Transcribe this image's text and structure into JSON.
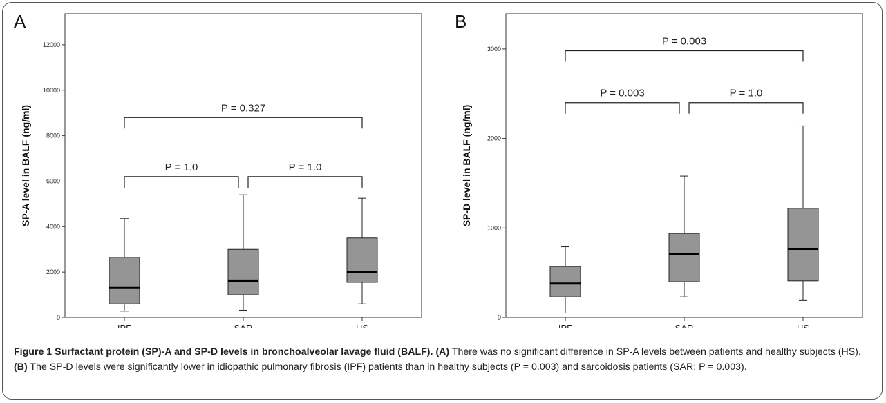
{
  "chart_data": [
    {
      "type": "box",
      "panel": "A",
      "ylabel": "SP-A level in BALF (ng/ml)",
      "xlabel": "",
      "ylim": [
        0,
        13000
      ],
      "yticks": [
        0,
        2000,
        4000,
        6000,
        8000,
        10000,
        12000
      ],
      "categories": [
        "IPF",
        "SAR",
        "HS"
      ],
      "boxes": [
        {
          "category": "IPF",
          "min": 280,
          "q1": 600,
          "median": 1300,
          "q3": 2650,
          "max": 4350
        },
        {
          "category": "SAR",
          "min": 320,
          "q1": 1000,
          "median": 1600,
          "q3": 3000,
          "max": 5400
        },
        {
          "category": "HS",
          "min": 600,
          "q1": 1550,
          "median": 2000,
          "q3": 3500,
          "max": 5250
        }
      ],
      "comparisons": [
        {
          "from": "IPF",
          "to": "SAR",
          "label": "P = 1.0",
          "y": 6200
        },
        {
          "from": "SAR",
          "to": "HS",
          "label": "P = 1.0",
          "y": 6200
        },
        {
          "from": "IPF",
          "to": "HS",
          "label": "P = 0.327",
          "y": 8800
        }
      ]
    },
    {
      "type": "box",
      "panel": "B",
      "ylabel": "SP-D level in BALF (ng/ml)",
      "xlabel": "",
      "ylim": [
        0,
        3300
      ],
      "yticks": [
        0,
        1000,
        2000,
        3000
      ],
      "categories": [
        "IPF",
        "SAR",
        "HS"
      ],
      "boxes": [
        {
          "category": "IPF",
          "min": 50,
          "q1": 230,
          "median": 380,
          "q3": 570,
          "max": 790
        },
        {
          "category": "SAR",
          "min": 230,
          "q1": 400,
          "median": 710,
          "q3": 940,
          "max": 1580
        },
        {
          "category": "HS",
          "min": 190,
          "q1": 410,
          "median": 760,
          "q3": 1220,
          "max": 2140
        }
      ],
      "comparisons": [
        {
          "from": "IPF",
          "to": "SAR",
          "label": "P = 0.003",
          "y": 2400
        },
        {
          "from": "SAR",
          "to": "HS",
          "label": "P = 1.0",
          "y": 2400
        },
        {
          "from": "IPF",
          "to": "HS",
          "label": "P = 0.003",
          "y": 2980
        }
      ]
    }
  ],
  "caption": {
    "lead": "Figure 1 Surfactant protein (SP)-A and SP-D levels in bronchoalveolar lavage fluid (BALF).",
    "part_a_label": "(A)",
    "part_a_text": "There was no significant difference in SP-A levels between patients and healthy subjects (HS).",
    "part_b_label": "(B)",
    "part_b_text": "The SP-D levels were significantly lower in idiopathic pulmonary fibrosis (IPF) patients than in healthy subjects (P = 0.003) and sarcoidosis patients (SAR; P = 0.003)."
  }
}
